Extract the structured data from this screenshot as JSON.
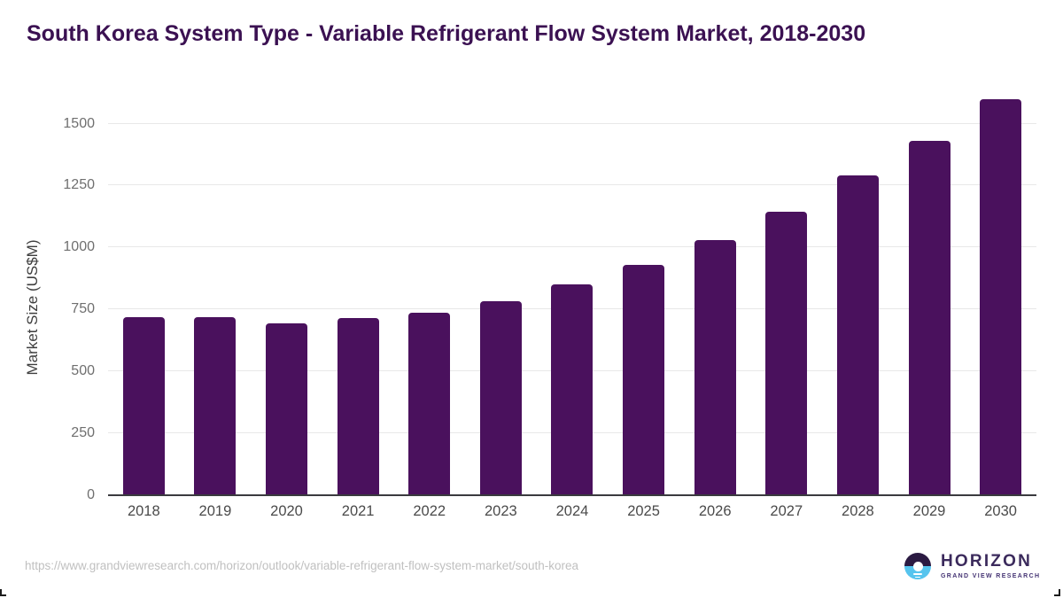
{
  "title": "South Korea System Type - Variable Refrigerant Flow System Market, 2018-2030",
  "colors": {
    "bar": "#4A115D",
    "title_text": "#3B1152",
    "gridline": "#E8E8E8",
    "axis_line": "#3A3A3E",
    "logo_purple": "#2B1A42",
    "logo_blue": "#56C4EE"
  },
  "footer": {
    "source_url": "https://www.grandviewresearch.com/horizon/outlook/variable-refrigerant-flow-system-market/south-korea",
    "logo": {
      "name": "HORIZON",
      "subtitle": "GRAND VIEW RESEARCH"
    }
  },
  "chart_data": {
    "type": "bar",
    "title": "South Korea System Type - Variable Refrigerant Flow System Market, 2018-2030",
    "categories": [
      "2018",
      "2019",
      "2020",
      "2021",
      "2022",
      "2023",
      "2024",
      "2025",
      "2026",
      "2027",
      "2028",
      "2029",
      "2030"
    ],
    "values": [
      720,
      720,
      695,
      715,
      735,
      785,
      850,
      930,
      1030,
      1145,
      1290,
      1430,
      1600
    ],
    "xlabel": "",
    "ylabel": "Market Size (US$M)",
    "yticks": [
      0,
      250,
      500,
      750,
      1000,
      1250,
      1500
    ],
    "ylim": [
      0,
      1620
    ],
    "grid": true,
    "legend": false,
    "bar_color": "#4A115D"
  }
}
